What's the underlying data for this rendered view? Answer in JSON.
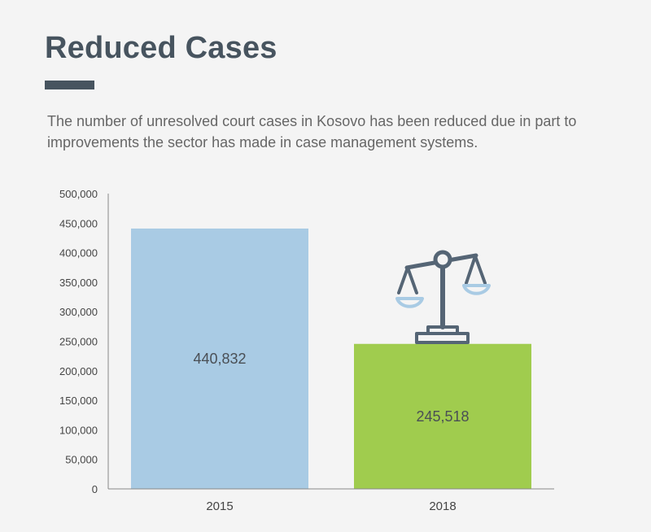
{
  "header": {
    "title": "Reduced Cases",
    "subtitle": "The number of unresolved court cases in Kosovo has been reduced due in part to improvements the sector has made in case management systems."
  },
  "chart_data": {
    "type": "bar",
    "categories": [
      "2015",
      "2018"
    ],
    "values": [
      440832,
      245518
    ],
    "data_labels": [
      "440,832",
      "245,518"
    ],
    "ylim": [
      0,
      500000
    ],
    "yticks": [
      0,
      50000,
      100000,
      150000,
      200000,
      250000,
      300000,
      350000,
      400000,
      450000,
      500000
    ],
    "ytick_labels": [
      "0",
      "50,000",
      "100,000",
      "150,000",
      "200,000",
      "250,000",
      "300,000",
      "350,000",
      "400,000",
      "450,000",
      "500,000"
    ],
    "bar_colors": [
      "#a9cbe4",
      "#a0cc4e"
    ],
    "grid": false,
    "icon": "scales-of-justice-icon"
  },
  "colors": {
    "title": "#47545f",
    "icon_frame": "#556575",
    "icon_pans": "#a9cbe4"
  }
}
